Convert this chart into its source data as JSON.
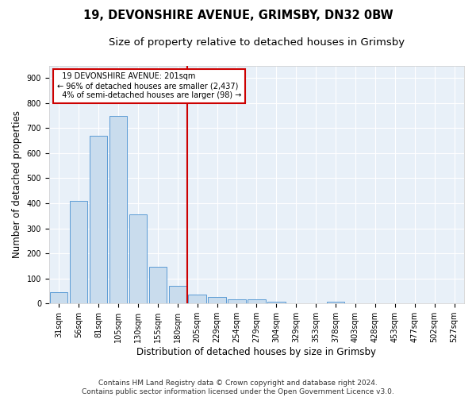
{
  "title_line1": "19, DEVONSHIRE AVENUE, GRIMSBY, DN32 0BW",
  "title_line2": "Size of property relative to detached houses in Grimsby",
  "xlabel": "Distribution of detached houses by size in Grimsby",
  "ylabel": "Number of detached properties",
  "footnote_line1": "Contains HM Land Registry data © Crown copyright and database right 2024.",
  "footnote_line2": "Contains public sector information licensed under the Open Government Licence v3.0.",
  "bar_labels": [
    "31sqm",
    "56sqm",
    "81sqm",
    "105sqm",
    "130sqm",
    "155sqm",
    "180sqm",
    "205sqm",
    "229sqm",
    "254sqm",
    "279sqm",
    "304sqm",
    "329sqm",
    "353sqm",
    "378sqm",
    "403sqm",
    "428sqm",
    "453sqm",
    "477sqm",
    "502sqm",
    "527sqm"
  ],
  "bar_values": [
    45,
    410,
    668,
    750,
    355,
    148,
    70,
    35,
    25,
    15,
    15,
    8,
    0,
    0,
    7,
    0,
    0,
    0,
    0,
    0,
    0
  ],
  "bar_color": "#c9dced",
  "bar_edge_color": "#5b9bd5",
  "vline_x": 6.5,
  "annotation_line1": "19 DEVONSHIRE AVENUE: 201sqm",
  "annotation_line2": "← 96% of detached houses are smaller (2,437)",
  "annotation_line3": "4% of semi-detached houses are larger (98) →",
  "annotation_box_facecolor": "#ffffff",
  "annotation_box_edgecolor": "#cc0000",
  "vline_color": "#cc0000",
  "ylim": [
    0,
    950
  ],
  "yticks": [
    0,
    100,
    200,
    300,
    400,
    500,
    600,
    700,
    800,
    900
  ],
  "bg_color": "#e8f0f8",
  "grid_color": "#ffffff",
  "fig_bg_color": "#ffffff",
  "title_fontsize": 10.5,
  "subtitle_fontsize": 9.5,
  "axis_label_fontsize": 8.5,
  "tick_fontsize": 7,
  "annotation_fontsize": 7,
  "footnote_fontsize": 6.5
}
